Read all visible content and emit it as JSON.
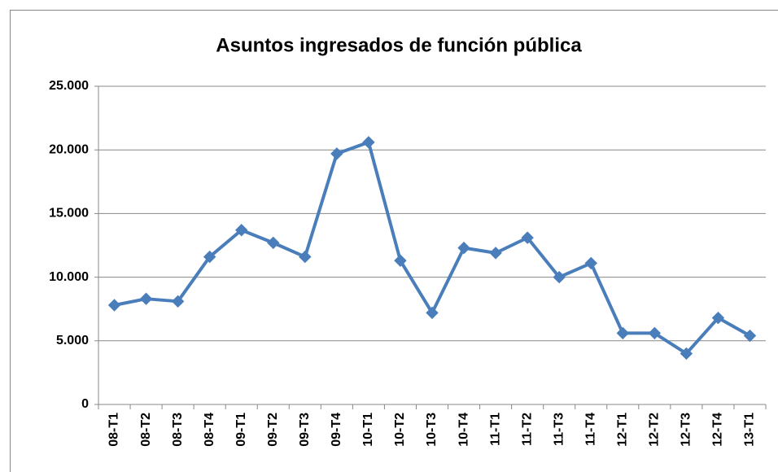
{
  "chart_data": {
    "type": "line",
    "title": "Asuntos ingresados de función pública",
    "categories": [
      "08-T1",
      "08-T2",
      "08-T3",
      "08-T4",
      "09-T1",
      "09-T2",
      "09-T3",
      "09-T4",
      "10-T1",
      "10-T2",
      "10-T3",
      "10-T4",
      "11-T1",
      "11-T2",
      "11-T3",
      "11-T4",
      "12-T1",
      "12-T2",
      "12-T3",
      "12-T4",
      "13-T1"
    ],
    "series": [
      {
        "color": "#4a7ebb",
        "values": [
          7800,
          8300,
          8100,
          11600,
          13700,
          12700,
          11600,
          19700,
          20600,
          11300,
          7200,
          12300,
          11900,
          13100,
          10000,
          11100,
          5600,
          5600,
          4000,
          6800,
          5400
        ]
      }
    ],
    "ylim": [
      0,
      25000
    ],
    "yticks": [
      0,
      {
        "value": 5000,
        "label": "5.000"
      },
      {
        "value": 10000,
        "label": "10.000"
      },
      {
        "value": 15000,
        "label": "15.000"
      },
      {
        "value": 20000,
        "label": "20.000"
      },
      {
        "value": 25000,
        "label": "25.000"
      }
    ],
    "grid": true
  }
}
